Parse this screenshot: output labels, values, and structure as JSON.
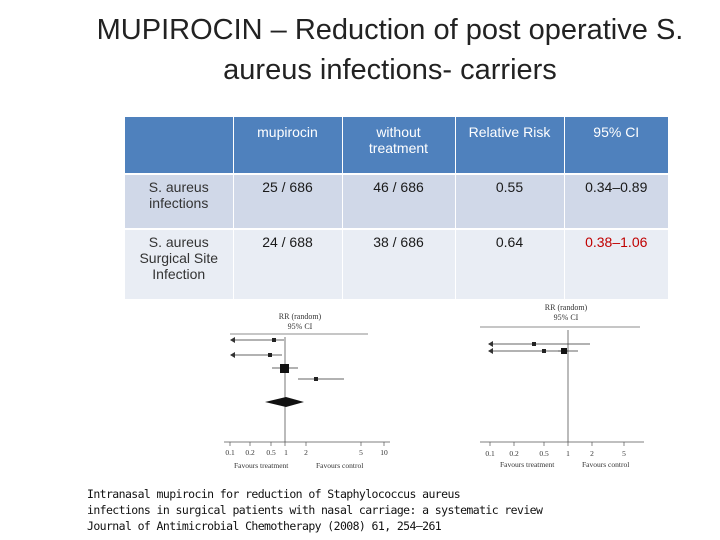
{
  "slide": {
    "title_line1": "MUPIROCIN – Reduction of post operative S.",
    "title_line2": "aureus infections- carriers"
  },
  "table": {
    "headers": [
      "",
      "mupirocin",
      "without treatment",
      "Relative Risk",
      "95% CI"
    ],
    "rows": [
      {
        "label": "S. aureus infections",
        "mupirocin": "25 / 686",
        "without": "46 / 686",
        "rr": "0.55",
        "ci": "0.34–0.89"
      },
      {
        "label": "S. aureus Surgical Site Infection",
        "mupirocin": "24 / 688",
        "without": "38 / 686",
        "rr": "0.64",
        "ci_a": "0.38–",
        "ci_b": "1.06"
      }
    ]
  },
  "forest_left": {
    "header_line1": "RR (random)",
    "header_line2": "95% CI",
    "axis_ticks": [
      "0.1",
      "0.2",
      "0.5",
      "1",
      "2",
      "5",
      "10"
    ],
    "favours_left": "Favours treatment",
    "favours_right": "Favours control"
  },
  "forest_right": {
    "header_line1": "RR (random)",
    "header_line2": "95% CI",
    "axis_ticks": [
      "0.1",
      "0.2",
      "0.5",
      "1",
      "2",
      "5"
    ],
    "favours_left": "Favours treatment",
    "favours_right": "Favours control"
  },
  "citation": {
    "line1": "Intranasal mupirocin for reduction of Staphylococcus aureus",
    "line2": "infections in surgical patients with nasal carriage: a systematic review",
    "line3": "Journal of Antimicrobial Chemotherapy (2008) 61, 254–261"
  }
}
